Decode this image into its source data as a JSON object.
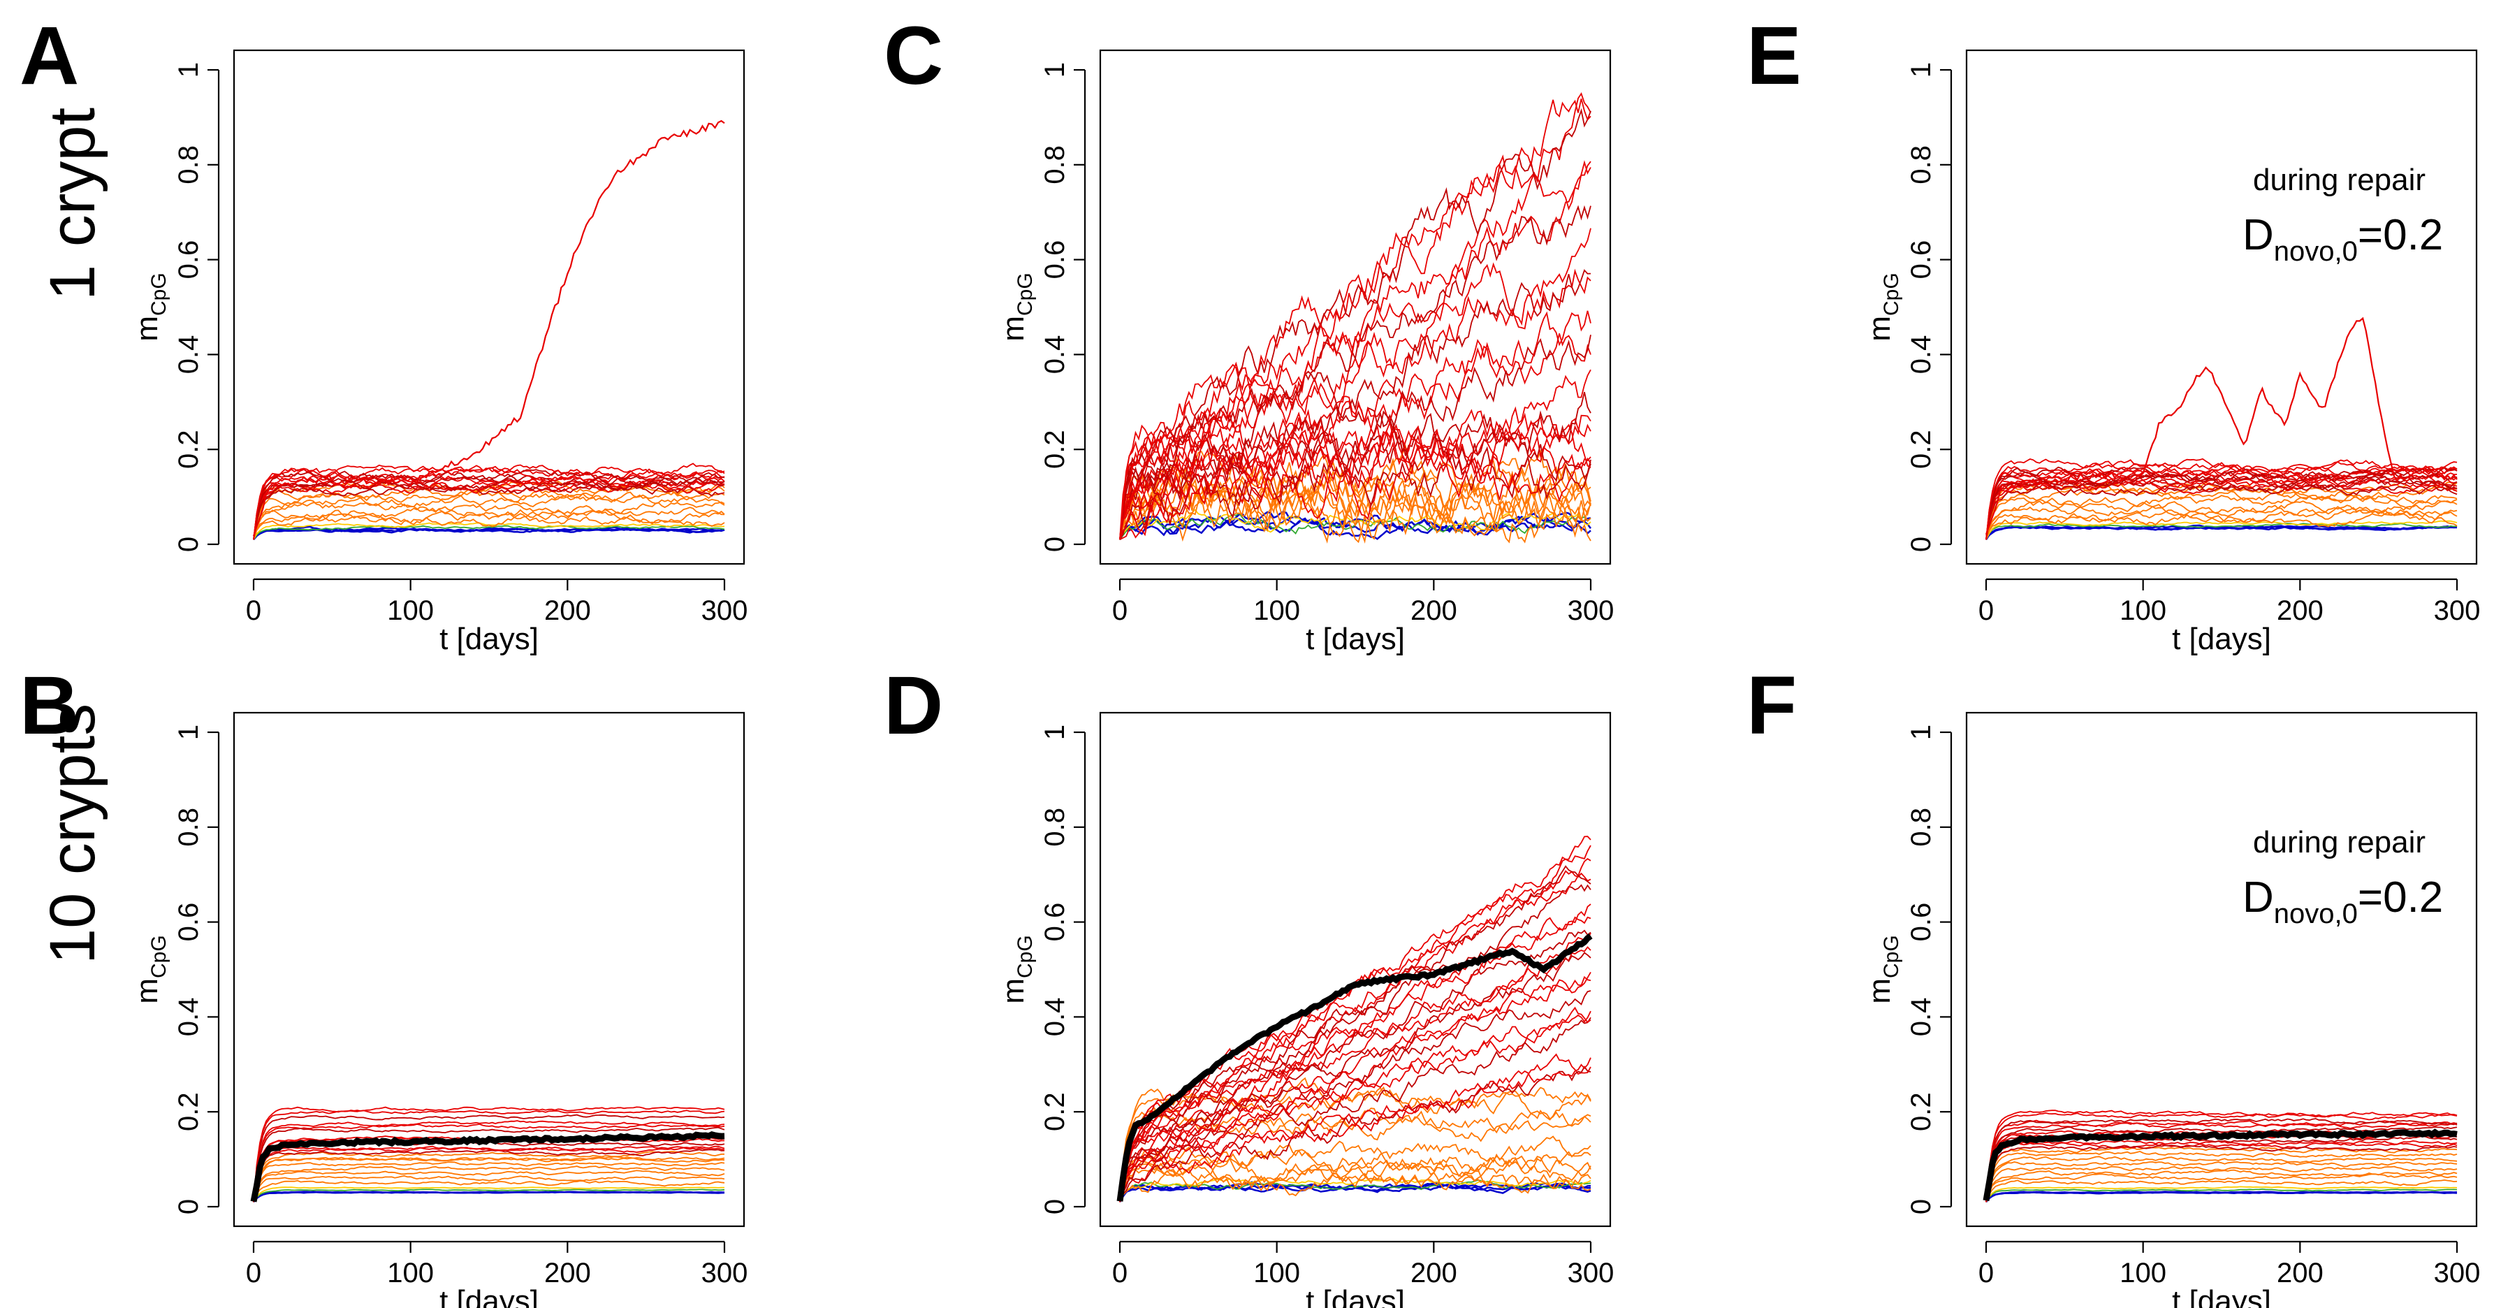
{
  "figure": {
    "row_labels": [
      "1 crypt",
      "10 crypts"
    ],
    "panel_letters": [
      "A",
      "B",
      "C",
      "D",
      "E",
      "F"
    ]
  },
  "colors": {
    "low": "#0000cc",
    "mid_green": "#33aa33",
    "yellow": "#ffcc00",
    "orange": "#ff7700",
    "red": "#e80000",
    "dark_red": "#c00000",
    "mean_line": "#000000"
  },
  "chart_data": [
    {
      "id": "A",
      "type": "line",
      "xlabel": "t [days]",
      "ylabel_main": "m",
      "ylabel_sub": "CpG",
      "xlim": [
        0,
        300
      ],
      "ylim": [
        0,
        1
      ],
      "xticks": [
        0,
        100,
        200,
        300
      ],
      "yticks": [
        0,
        0.2,
        0.4,
        0.6,
        0.8,
        1
      ],
      "ytick_labels": [
        "0",
        "0.2",
        "0.4",
        "0.6",
        "0.8",
        "1"
      ],
      "family": {
        "blue_level": 0.03,
        "orange_levels": [
          0.05,
          0.07,
          0.09,
          0.11
        ],
        "red_levels": [
          0.12,
          0.13,
          0.14,
          0.15
        ],
        "noise": 0.012
      },
      "highlight": {
        "x": [
          0,
          10,
          50,
          100,
          140,
          170,
          190,
          210,
          230,
          260,
          300
        ],
        "values": [
          0.02,
          0.12,
          0.14,
          0.13,
          0.19,
          0.27,
          0.48,
          0.66,
          0.78,
          0.85,
          0.89
        ],
        "color": "#e80000"
      },
      "annotation_line1": "",
      "annotation_main": "",
      "annotation_sub": "",
      "annotation_tail": ""
    },
    {
      "id": "B",
      "type": "line",
      "xlabel": "t [days]",
      "ylabel_main": "m",
      "ylabel_sub": "CpG",
      "xlim": [
        0,
        300
      ],
      "ylim": [
        0,
        1
      ],
      "xticks": [
        0,
        100,
        200,
        300
      ],
      "yticks": [
        0,
        0.2,
        0.4,
        0.6,
        0.8,
        1
      ],
      "ytick_labels": [
        "0",
        "0.2",
        "0.4",
        "0.6",
        "0.8",
        "1"
      ],
      "family": {
        "blue_level": 0.03,
        "orange_levels": [
          0.05,
          0.07,
          0.09,
          0.1
        ],
        "red_levels": [
          0.12,
          0.14,
          0.17,
          0.2
        ],
        "noise": 0.004
      },
      "mean": {
        "x": [
          0,
          5,
          10,
          20,
          50,
          100,
          150,
          200,
          250,
          300
        ],
        "values": [
          0.01,
          0.1,
          0.12,
          0.13,
          0.135,
          0.137,
          0.14,
          0.143,
          0.146,
          0.15
        ]
      },
      "annotation_line1": "",
      "annotation_main": "",
      "annotation_sub": "",
      "annotation_tail": ""
    },
    {
      "id": "C",
      "type": "line",
      "xlabel": "t [days]",
      "ylabel_main": "m",
      "ylabel_sub": "CpG",
      "xlim": [
        0,
        300
      ],
      "ylim": [
        0,
        1
      ],
      "xticks": [
        0,
        100,
        200,
        300
      ],
      "yticks": [
        0,
        0.2,
        0.4,
        0.6,
        0.8,
        1
      ],
      "ytick_labels": [
        "0",
        "0.2",
        "0.4",
        "0.6",
        "0.8",
        "1"
      ],
      "family": {
        "blue_level": 0.04,
        "orange_levels": [
          0.06,
          0.08,
          0.1,
          0.12
        ],
        "red_levels": [
          0.15,
          0.2,
          0.3,
          0.45,
          0.6,
          0.75,
          0.9
        ],
        "noise": 0.06
      },
      "annotation_line1": "",
      "annotation_main": "",
      "annotation_sub": "",
      "annotation_tail": ""
    },
    {
      "id": "D",
      "type": "line",
      "xlabel": "t [days]",
      "ylabel_main": "m",
      "ylabel_sub": "CpG",
      "xlim": [
        0,
        300
      ],
      "ylim": [
        0,
        1
      ],
      "xticks": [
        0,
        100,
        200,
        300
      ],
      "yticks": [
        0,
        0.2,
        0.4,
        0.6,
        0.8,
        1
      ],
      "ytick_labels": [
        "0",
        "0.2",
        "0.4",
        "0.6",
        "0.8",
        "1"
      ],
      "family": {
        "blue_level": 0.04,
        "orange_levels": [
          0.05,
          0.07,
          0.1,
          0.17,
          0.22
        ],
        "red_levels": [
          0.3,
          0.4,
          0.48,
          0.55,
          0.62,
          0.7,
          0.75
        ],
        "noise": 0.025
      },
      "mean": {
        "x": [
          0,
          5,
          10,
          25,
          50,
          80,
          100,
          130,
          150,
          175,
          200,
          230,
          250,
          270,
          300
        ],
        "values": [
          0.01,
          0.13,
          0.17,
          0.2,
          0.27,
          0.34,
          0.38,
          0.43,
          0.47,
          0.48,
          0.49,
          0.52,
          0.54,
          0.5,
          0.57
        ]
      },
      "annotation_line1": "",
      "annotation_main": "",
      "annotation_sub": "",
      "annotation_tail": ""
    },
    {
      "id": "E",
      "type": "line",
      "xlabel": "t [days]",
      "ylabel_main": "m",
      "ylabel_sub": "CpG",
      "xlim": [
        0,
        300
      ],
      "ylim": [
        0,
        1
      ],
      "xticks": [
        0,
        100,
        200,
        300
      ],
      "yticks": [
        0,
        0.2,
        0.4,
        0.6,
        0.8,
        1
      ],
      "ytick_labels": [
        "0",
        "0.2",
        "0.4",
        "0.6",
        "0.8",
        "1"
      ],
      "family": {
        "blue_level": 0.035,
        "orange_levels": [
          0.05,
          0.07,
          0.09,
          0.11
        ],
        "red_levels": [
          0.12,
          0.13,
          0.14,
          0.15,
          0.16
        ],
        "noise": 0.012
      },
      "highlight": {
        "x": [
          0,
          10,
          50,
          100,
          110,
          125,
          140,
          150,
          165,
          175,
          190,
          200,
          215,
          230,
          240,
          250,
          260,
          280,
          300
        ],
        "values": [
          0.02,
          0.12,
          0.14,
          0.15,
          0.25,
          0.3,
          0.38,
          0.32,
          0.2,
          0.33,
          0.25,
          0.36,
          0.28,
          0.44,
          0.48,
          0.3,
          0.14,
          0.15,
          0.14
        ],
        "color": "#e80000"
      },
      "annotation_line1": "during repair",
      "annotation_main": "D",
      "annotation_sub": "novo,0",
      "annotation_tail": "=0.2"
    },
    {
      "id": "F",
      "type": "line",
      "xlabel": "t [days]",
      "ylabel_main": "m",
      "ylabel_sub": "CpG",
      "xlim": [
        0,
        300
      ],
      "ylim": [
        0,
        1
      ],
      "xticks": [
        0,
        100,
        200,
        300
      ],
      "yticks": [
        0,
        0.2,
        0.4,
        0.6,
        0.8,
        1
      ],
      "ytick_labels": [
        "0",
        "0.2",
        "0.4",
        "0.6",
        "0.8",
        "1"
      ],
      "family": {
        "blue_level": 0.03,
        "orange_levels": [
          0.05,
          0.07,
          0.09,
          0.11
        ],
        "red_levels": [
          0.13,
          0.15,
          0.17,
          0.19
        ],
        "noise": 0.005
      },
      "mean": {
        "x": [
          0,
          5,
          10,
          20,
          50,
          100,
          150,
          200,
          250,
          300
        ],
        "values": [
          0.01,
          0.11,
          0.13,
          0.14,
          0.145,
          0.148,
          0.15,
          0.152,
          0.153,
          0.155
        ]
      },
      "annotation_line1": "during repair",
      "annotation_main": "D",
      "annotation_sub": "novo,0",
      "annotation_tail": "=0.2"
    }
  ]
}
